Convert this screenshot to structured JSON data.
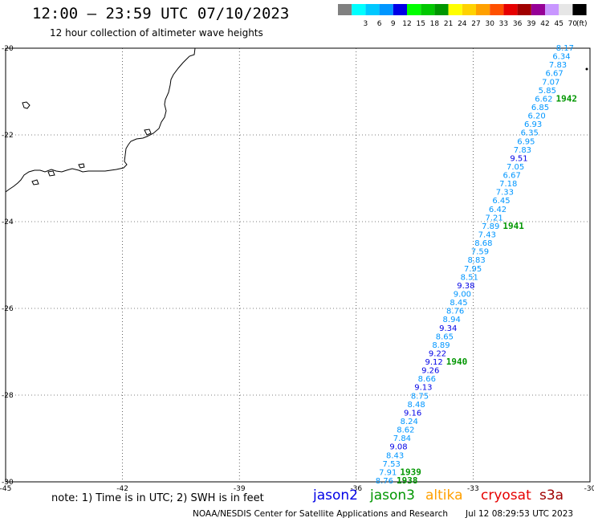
{
  "header": {
    "title": "12:00 – 23:59 UTC 07/10/2023",
    "subtitle": "12 hour collection of altimeter wave heights"
  },
  "legend": {
    "unit": "(ft)",
    "items": [
      {
        "label": "",
        "color": "#808080"
      },
      {
        "label": "3",
        "color": "#00ffff"
      },
      {
        "label": "6",
        "color": "#00c8ff"
      },
      {
        "label": "9",
        "color": "#0096ff"
      },
      {
        "label": "12",
        "color": "#0000e6"
      },
      {
        "label": "15",
        "color": "#00ff00"
      },
      {
        "label": "18",
        "color": "#00c800"
      },
      {
        "label": "21",
        "color": "#009600"
      },
      {
        "label": "24",
        "color": "#ffff00"
      },
      {
        "label": "27",
        "color": "#ffd200"
      },
      {
        "label": "30",
        "color": "#ffa000"
      },
      {
        "label": "33",
        "color": "#ff5000"
      },
      {
        "label": "36",
        "color": "#e60000"
      },
      {
        "label": "39",
        "color": "#a00000"
      },
      {
        "label": "42",
        "color": "#960096"
      },
      {
        "label": "45",
        "color": "#c896ff"
      },
      {
        "label": "70",
        "color": "#e6e6e6"
      },
      {
        "label": "",
        "color": "#000000"
      }
    ]
  },
  "axes": {
    "lon_ticks": [
      "-45",
      "-42",
      "-39",
      "-36",
      "-33",
      "-30"
    ],
    "lat_ticks": [
      "-20",
      "-22",
      "-24",
      "-26",
      "-28",
      "-30"
    ],
    "lon_range": [
      -45,
      -30
    ],
    "lat_range": [
      -30,
      -20
    ]
  },
  "track": {
    "swh_ft": [
      "8.17",
      "6.34",
      "7.83",
      "6.67",
      "7.07",
      "5.85",
      "6.62",
      "6.85",
      "6.20",
      "6.93",
      "6.35",
      "6.95",
      "7.83",
      "9.51",
      "7.05",
      "6.67",
      "7.18",
      "7.33",
      "6.45",
      "6.42",
      "7.21",
      "7.89",
      "7.43",
      "8.68",
      "7.59",
      "8.83",
      "7.95",
      "8.51",
      "9.38",
      "9.00",
      "8.45",
      "8.76",
      "8.94",
      "9.34",
      "8.65",
      "8.89",
      "9.22",
      "9.12",
      "9.26",
      "8.66",
      "9.13",
      "8.75",
      "8.48",
      "9.16",
      "8.24",
      "8.62",
      "7.84",
      "9.08",
      "8.43",
      "7.53",
      "7.91",
      "8.76"
    ],
    "point_colors": [
      "#0096ff",
      "#0096ff",
      "#0096ff",
      "#0096ff",
      "#0096ff",
      "#0096ff",
      "#0096ff",
      "#0096ff",
      "#0096ff",
      "#0096ff",
      "#0096ff",
      "#0096ff",
      "#0096ff",
      "#0000e6",
      "#0096ff",
      "#0096ff",
      "#0096ff",
      "#0096ff",
      "#0096ff",
      "#0096ff",
      "#0096ff",
      "#0096ff",
      "#0096ff",
      "#0096ff",
      "#0096ff",
      "#0096ff",
      "#0096ff",
      "#0096ff",
      "#0000e6",
      "#0096ff",
      "#0096ff",
      "#0096ff",
      "#0096ff",
      "#0000e6",
      "#0096ff",
      "#0096ff",
      "#0000e6",
      "#0000e6",
      "#0000e6",
      "#0096ff",
      "#0000e6",
      "#0096ff",
      "#0096ff",
      "#0000e6",
      "#0096ff",
      "#0096ff",
      "#0096ff",
      "#0000e6",
      "#0096ff",
      "#0096ff",
      "#0096ff",
      "#0096ff"
    ],
    "time_labels": [
      {
        "text": "1942",
        "color": "#009600",
        "index": 6
      },
      {
        "text": "1941",
        "color": "#009600",
        "index": 21
      },
      {
        "text": "1940",
        "color": "#009600",
        "index": 37
      },
      {
        "text": "1939",
        "color": "#009600",
        "index": 50
      },
      {
        "text": "1938",
        "color": "#009600",
        "index": 51
      }
    ]
  },
  "footer": {
    "note": "note:  1) Time is in UTC;  2) SWH is in feet",
    "satellites": [
      {
        "name": "jason2",
        "color": "#0000e6"
      },
      {
        "name": "jason3",
        "color": "#009600"
      },
      {
        "name": "altika",
        "color": "#ffa000"
      },
      {
        "name": "cryosat",
        "color": "#e60000"
      },
      {
        "name": "s3a",
        "color": "#a00000"
      }
    ],
    "credit": "NOAA/NESDIS Center for Satellite Applications and Research",
    "timestamp": "Jul 12 08:29:53 UTC 2023"
  }
}
